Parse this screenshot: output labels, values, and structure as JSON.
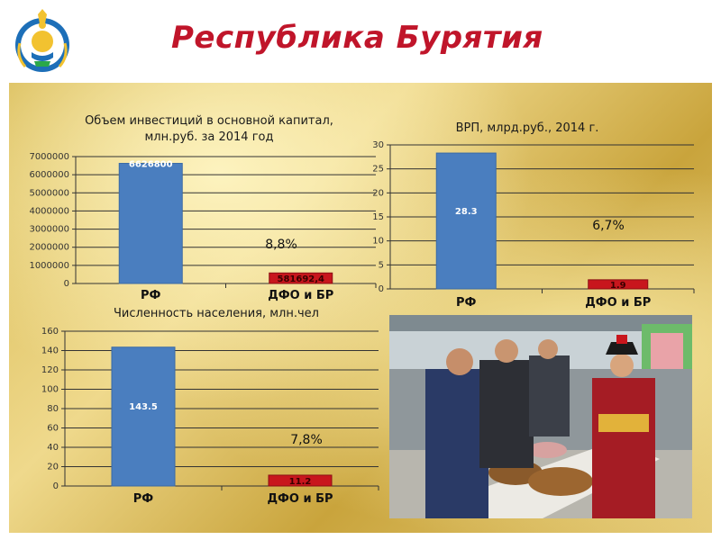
{
  "header": {
    "title": "Республика Бурятия"
  },
  "colors": {
    "title": "#c0152a",
    "bar_main": "#4a7ebf",
    "bar_small": "#c8161d"
  },
  "photo": {
    "icon": "market-photo"
  },
  "chart_data": [
    {
      "type": "bar",
      "title_lines": [
        "Объем инвестиций в основной капитал,",
        "млн.руб. за 2014 год"
      ],
      "categories": [
        "РФ",
        "ДФО и БР"
      ],
      "values": [
        6626800,
        581692.4
      ],
      "data_labels": [
        "6626800",
        "581692,4"
      ],
      "annotation": "8,8%",
      "ylim": [
        0,
        7000000
      ],
      "yticks": [
        "0",
        "1000000",
        "2000000",
        "3000000",
        "4000000",
        "5000000",
        "6000000",
        "7000000"
      ],
      "grid": true
    },
    {
      "type": "bar",
      "title_lines": [
        "ВРП, млрд.руб., 2014 г."
      ],
      "categories": [
        "РФ",
        "ДФО и БР"
      ],
      "values": [
        28.3,
        1.9
      ],
      "data_labels": [
        "28.3",
        "1.9"
      ],
      "annotation": "6,7%",
      "ylim": [
        0,
        30
      ],
      "yticks": [
        "0",
        "5",
        "10",
        "15",
        "20",
        "25",
        "30"
      ],
      "grid": true
    },
    {
      "type": "bar",
      "title_lines": [
        "Численность населения, млн.чел"
      ],
      "categories": [
        "РФ",
        "ДФО и БР"
      ],
      "values": [
        143.5,
        11.2
      ],
      "data_labels": [
        "143.5",
        "11.2"
      ],
      "annotation": "7,8%",
      "ylim": [
        0,
        160
      ],
      "yticks": [
        "0",
        "20",
        "40",
        "60",
        "80",
        "100",
        "120",
        "140",
        "160"
      ],
      "grid": true
    }
  ]
}
